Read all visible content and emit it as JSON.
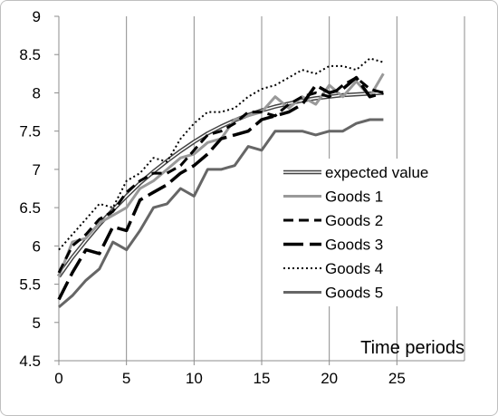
{
  "chart_data": {
    "type": "line",
    "title": "",
    "xlabel": "Time periods",
    "ylabel": "",
    "xlim": [
      0,
      30
    ],
    "ylim": [
      4.5,
      9
    ],
    "xticks": [
      0,
      5,
      10,
      15,
      20,
      25
    ],
    "yticks": [
      4.5,
      5,
      5.5,
      6,
      6.5,
      7,
      7.5,
      8,
      8.5,
      9
    ],
    "grid": "vertical",
    "legend_position": "center-right",
    "x": [
      0,
      1,
      2,
      3,
      4,
      5,
      6,
      7,
      8,
      9,
      10,
      11,
      12,
      13,
      14,
      15,
      16,
      17,
      18,
      19,
      20,
      21,
      22,
      23,
      24
    ],
    "series": [
      {
        "name": "expected value",
        "style": "double",
        "color": "#444444",
        "values": [
          5.6,
          5.85,
          6.07,
          6.28,
          6.47,
          6.65,
          6.82,
          6.97,
          7.11,
          7.24,
          7.36,
          7.47,
          7.56,
          7.64,
          7.71,
          7.77,
          7.82,
          7.86,
          7.9,
          7.93,
          7.95,
          7.97,
          7.98,
          7.99,
          8.0
        ]
      },
      {
        "name": "Goods 1",
        "style": "solid",
        "color": "#999999",
        "values": [
          5.6,
          6.05,
          6.1,
          6.3,
          6.4,
          6.5,
          6.75,
          6.85,
          7.0,
          7.15,
          7.2,
          7.35,
          7.4,
          7.65,
          7.7,
          7.75,
          7.95,
          7.8,
          7.95,
          7.85,
          8.1,
          7.95,
          8.15,
          7.95,
          8.25
        ]
      },
      {
        "name": "Goods 2",
        "style": "dashed",
        "color": "#000000",
        "values": [
          5.65,
          6.0,
          6.15,
          6.35,
          6.45,
          6.7,
          6.85,
          6.95,
          6.95,
          7.05,
          7.25,
          7.45,
          7.5,
          7.6,
          7.75,
          7.75,
          7.7,
          7.85,
          7.95,
          8.0,
          7.95,
          8.1,
          8.2,
          8.05,
          8.0
        ]
      },
      {
        "name": "Goods 3",
        "style": "longdash",
        "color": "#000000",
        "values": [
          5.3,
          5.65,
          5.95,
          5.9,
          6.25,
          6.2,
          6.6,
          6.7,
          6.8,
          6.95,
          7.05,
          7.2,
          7.4,
          7.45,
          7.5,
          7.65,
          7.7,
          7.75,
          7.85,
          8.1,
          8.0,
          8.05,
          8.2,
          7.95,
          8.0
        ]
      },
      {
        "name": "Goods 4",
        "style": "dotted",
        "color": "#000000",
        "values": [
          5.95,
          6.15,
          6.35,
          6.55,
          6.5,
          6.85,
          6.95,
          7.15,
          7.1,
          7.4,
          7.6,
          7.75,
          7.75,
          7.8,
          7.95,
          8.05,
          8.1,
          8.2,
          8.3,
          8.25,
          8.35,
          8.35,
          8.3,
          8.45,
          8.4
        ]
      },
      {
        "name": "Goods 5",
        "style": "solid",
        "color": "#666666",
        "values": [
          5.2,
          5.35,
          5.55,
          5.7,
          6.05,
          5.95,
          6.2,
          6.5,
          6.55,
          6.75,
          6.65,
          7.0,
          7.0,
          7.05,
          7.3,
          7.25,
          7.5,
          7.5,
          7.5,
          7.45,
          7.5,
          7.5,
          7.6,
          7.65,
          7.65
        ]
      }
    ]
  }
}
